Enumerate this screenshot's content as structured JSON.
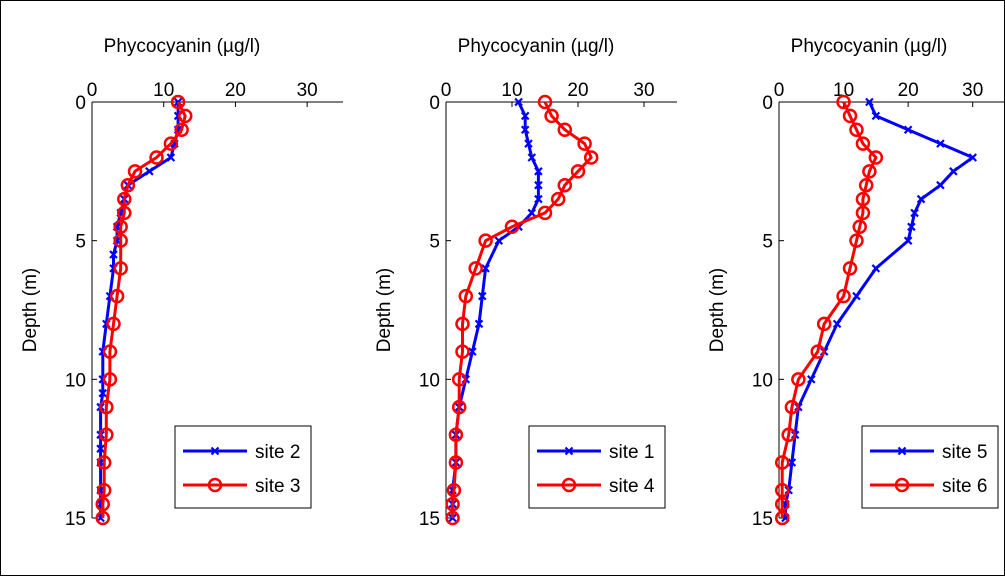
{
  "chart_data": [
    {
      "type": "line",
      "xlabel": "Phycocyanin (µg/l)",
      "ylabel": "Depth (m)",
      "xlim": [
        0,
        35
      ],
      "ylim": [
        0,
        15
      ],
      "xticks": [
        "0",
        "10",
        "20",
        "30"
      ],
      "yticks": [
        "0",
        "5",
        "10",
        "15"
      ],
      "y_reversed": true,
      "legend_position": "bottom-right",
      "series": [
        {
          "name": "site 2",
          "color": "#0000ff",
          "marker": "x",
          "x": [
            12,
            12,
            12,
            11.5,
            11,
            8,
            5,
            4.5,
            4,
            3.5,
            3.5,
            3,
            3,
            2.5,
            2,
            1.5,
            1.5,
            1.5,
            1.2,
            1.2,
            1.2,
            1.2,
            1.2,
            1.2,
            1.2
          ],
          "y": [
            0,
            0.5,
            1,
            1.5,
            2,
            2.5,
            3,
            3.5,
            4,
            4.5,
            5,
            5.5,
            6,
            7,
            8,
            9,
            10,
            10.5,
            11,
            12,
            12.5,
            13,
            14,
            14.5,
            15
          ]
        },
        {
          "name": "site 3",
          "color": "#ff0000",
          "marker": "o",
          "x": [
            12,
            13,
            12.5,
            11,
            9,
            6,
            5,
            4.5,
            4.5,
            4,
            4,
            4,
            3.5,
            3,
            2.5,
            2.5,
            2,
            2,
            1.7,
            1.7,
            1.5,
            1.5
          ],
          "y": [
            0,
            0.5,
            1,
            1.5,
            2,
            2.5,
            3,
            3.5,
            4,
            4.5,
            5,
            6,
            7,
            8,
            9,
            10,
            11,
            12,
            13,
            14,
            14.5,
            15
          ]
        }
      ]
    },
    {
      "type": "line",
      "xlabel": "Phycocyanin (µg/l)",
      "ylabel": "Depth (m)",
      "xlim": [
        0,
        35
      ],
      "ylim": [
        0,
        15
      ],
      "xticks": [
        "0",
        "10",
        "20",
        "30"
      ],
      "yticks": [
        "0",
        "5",
        "10",
        "15"
      ],
      "y_reversed": true,
      "legend_position": "bottom-right",
      "series": [
        {
          "name": "site 1",
          "color": "#0000ff",
          "marker": "x",
          "x": [
            11,
            12,
            12,
            12.5,
            13,
            14,
            14,
            14,
            13,
            11,
            8,
            6,
            5.5,
            5,
            4,
            3,
            2,
            1.5,
            1.5,
            1,
            1,
            1
          ],
          "y": [
            0,
            0.5,
            1,
            1.5,
            2,
            2.5,
            3,
            3.5,
            4,
            4.5,
            5,
            6,
            7,
            8,
            9,
            10,
            11,
            12,
            13,
            14,
            14.5,
            15
          ]
        },
        {
          "name": "site 4",
          "color": "#ff0000",
          "marker": "o",
          "x": [
            15,
            16,
            18,
            21,
            22,
            20,
            18,
            17,
            15,
            10,
            6,
            4.5,
            3,
            2.5,
            2.5,
            2,
            2,
            1.5,
            1.5,
            1.2,
            1,
            1
          ],
          "y": [
            0,
            0.5,
            1,
            1.5,
            2,
            2.5,
            3,
            3.5,
            4,
            4.5,
            5,
            6,
            7,
            8,
            9,
            10,
            11,
            12,
            13,
            14,
            14.5,
            15
          ]
        }
      ]
    },
    {
      "type": "line",
      "xlabel": "Phycocyanin (µg/l)",
      "ylabel": "Depth (m)",
      "xlim": [
        0,
        35
      ],
      "ylim": [
        0,
        15
      ],
      "xticks": [
        "0",
        "10",
        "20",
        "30"
      ],
      "yticks": [
        "0",
        "5",
        "10",
        "15"
      ],
      "y_reversed": true,
      "legend_position": "bottom-right",
      "series": [
        {
          "name": "site 5",
          "color": "#0000ff",
          "marker": "x",
          "x": [
            14,
            15,
            20,
            25,
            30,
            27,
            25,
            22,
            21,
            20.5,
            20,
            15,
            12,
            9,
            7,
            5,
            3,
            2.5,
            2,
            1.5,
            1,
            1
          ],
          "y": [
            0,
            0.5,
            1,
            1.5,
            2,
            2.5,
            3,
            3.5,
            4,
            4.5,
            5,
            6,
            7,
            8,
            9,
            10,
            11,
            12,
            13,
            14,
            14.5,
            15
          ]
        },
        {
          "name": "site 6",
          "color": "#ff0000",
          "marker": "o",
          "x": [
            10,
            11,
            12,
            13,
            15,
            14,
            13.5,
            13,
            13,
            12.5,
            12,
            11,
            10,
            7,
            6,
            3,
            2,
            1.5,
            0.5,
            0.5,
            0.5,
            0.5
          ],
          "y": [
            0,
            0.5,
            1,
            1.5,
            2,
            2.5,
            3,
            3.5,
            4,
            4.5,
            5,
            6,
            7,
            8,
            9,
            10,
            11,
            12,
            13,
            14,
            14.5,
            15
          ]
        }
      ]
    }
  ]
}
